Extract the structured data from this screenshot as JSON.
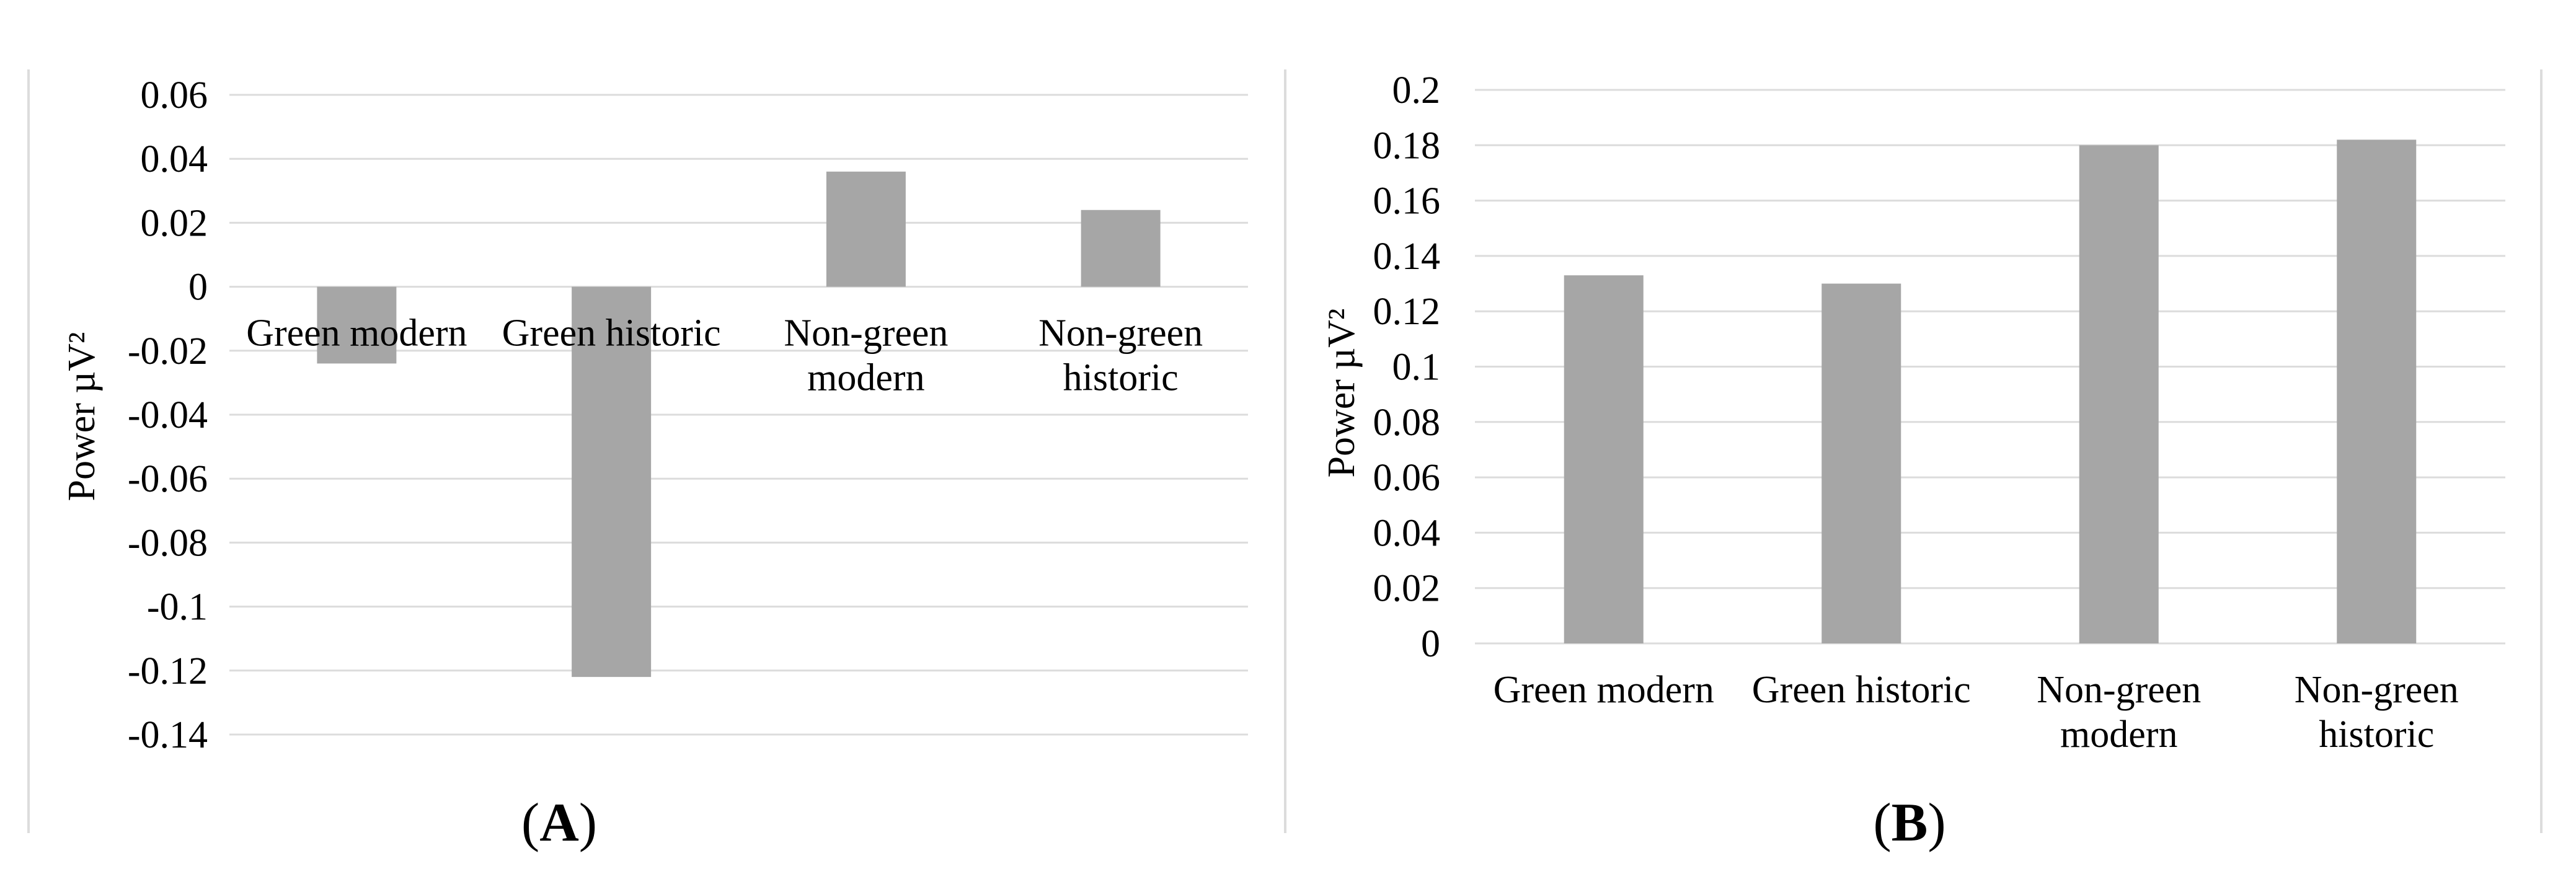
{
  "figure": {
    "captions": [
      {
        "open": "(",
        "letter": "A",
        "close": ")"
      },
      {
        "open": "(",
        "letter": "B",
        "close": ")"
      }
    ],
    "colors": {
      "bar": "#a6a6a6",
      "gridline": "#dcdcdc",
      "panel_border": "#dcdcdc",
      "text": "#000000",
      "background": "#ffffff"
    }
  },
  "chart_data": [
    {
      "type": "bar",
      "panel": "A",
      "title": "",
      "xlabel": "",
      "ylabel": "Power µV²",
      "categories": [
        "Green modern",
        "Green historic",
        "Non-green modern",
        "Non-green historic"
      ],
      "values": [
        -0.024,
        -0.122,
        0.036,
        0.024
      ],
      "ylim": [
        -0.14,
        0.06
      ],
      "ytick_step": 0.02,
      "ytick_labels": [
        "0.06",
        "0.04",
        "0.02",
        "0",
        "-0.02",
        "-0.04",
        "-0.06",
        "-0.08",
        "-0.1",
        "-0.12",
        "-0.14"
      ],
      "grid": true,
      "legend": "none",
      "bar_color": "#a6a6a6",
      "gridline_color": "#dcdcdc"
    },
    {
      "type": "bar",
      "panel": "B",
      "title": "",
      "xlabel": "",
      "ylabel": "Power µV²",
      "categories": [
        "Green modern",
        "Green historic",
        "Non-green modern",
        "Non-green historic"
      ],
      "values": [
        0.133,
        0.13,
        0.18,
        0.182
      ],
      "ylim": [
        0,
        0.2
      ],
      "ytick_step": 0.02,
      "ytick_labels": [
        "0.2",
        "0.18",
        "0.16",
        "0.14",
        "0.12",
        "0.1",
        "0.08",
        "0.06",
        "0.04",
        "0.02",
        "0"
      ],
      "grid": true,
      "legend": "none",
      "bar_color": "#a6a6a6",
      "gridline_color": "#dcdcdc"
    }
  ]
}
